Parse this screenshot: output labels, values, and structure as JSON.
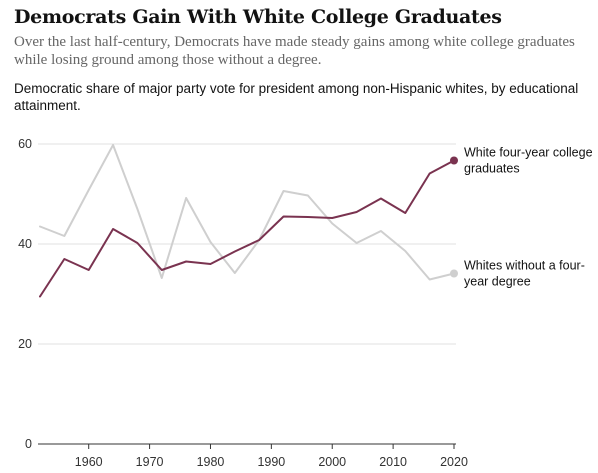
{
  "chart_data": {
    "type": "line",
    "title": "Democrats Gain With White College Graduates",
    "subtitle": "Over the last half-century, Democrats have made steady gains among white college graduates while losing ground among those without a degree.",
    "description": "Democratic share of major party vote for president among non-Hispanic whites, by educational attainment.",
    "x": [
      1952,
      1956,
      1960,
      1964,
      1968,
      1972,
      1976,
      1980,
      1984,
      1988,
      1992,
      1996,
      2000,
      2004,
      2008,
      2012,
      2016,
      2020
    ],
    "series": [
      {
        "name": "White four-year college graduates",
        "label_lines": [
          "White four-year college",
          "graduates"
        ],
        "color": "#7a3350",
        "values": [
          29.5,
          37,
          34.8,
          43,
          40.2,
          34.8,
          36.5,
          36,
          38.5,
          40.8,
          45.5,
          45.4,
          45.2,
          46.4,
          49.1,
          46.2,
          54.1,
          56.7
        ]
      },
      {
        "name": "Whites without a four-year degree",
        "label_lines": [
          "Whites without a four-",
          "year degree"
        ],
        "color": "#cfcfcf",
        "values": [
          43.5,
          41.6,
          50.8,
          59.8,
          47,
          33.2,
          49.2,
          40.4,
          34.2,
          40.8,
          50.6,
          49.7,
          44.1,
          40.2,
          42.6,
          38.6,
          32.9,
          34.1
        ]
      }
    ],
    "xticks": [
      1960,
      1970,
      1980,
      1990,
      2000,
      2010,
      2020
    ],
    "yticks": [
      0,
      20,
      40,
      60
    ],
    "xlim": [
      1952,
      2020
    ],
    "ylim": [
      0,
      60
    ],
    "grid": true
  }
}
